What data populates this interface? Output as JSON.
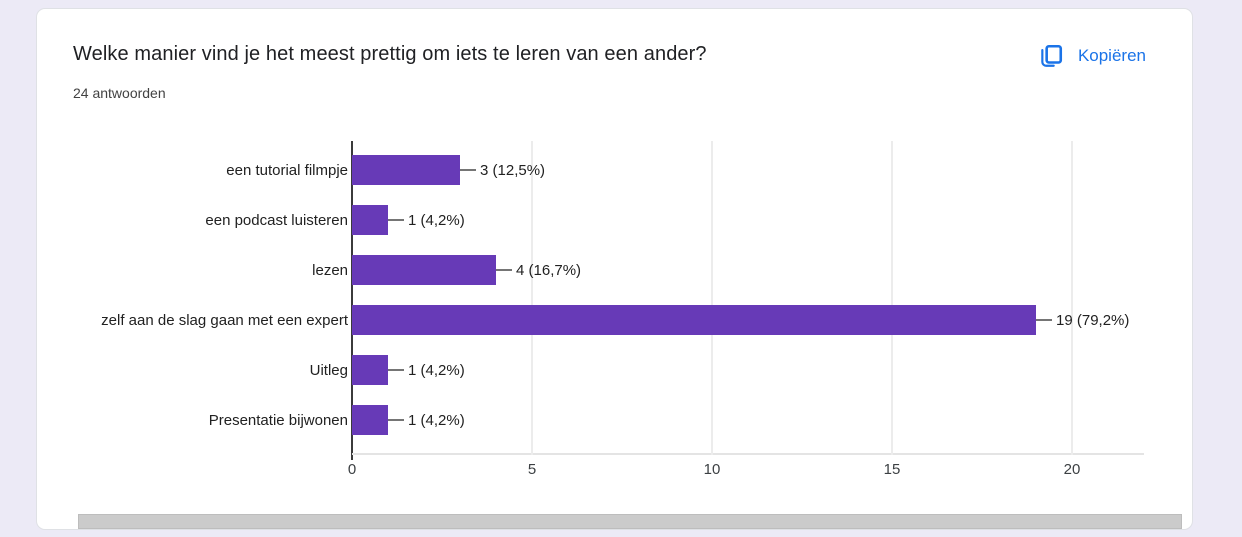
{
  "page": {
    "background_color": "#eceaf6"
  },
  "card": {
    "title": "Welke manier vind je het meest prettig om iets te leren van een ander?",
    "answers_count": "24 antwoorden",
    "copy_label": "Kopiëren",
    "copy_icon": "copy-icon",
    "accent_color": "#1a73e8"
  },
  "chart_data": {
    "type": "bar",
    "orientation": "horizontal",
    "categories": [
      "een tutorial filmpje",
      "een podcast luisteren",
      "lezen",
      "zelf aan de slag gaan met een expert",
      "Uitleg",
      "Presentatie bijwonen"
    ],
    "values": [
      3,
      1,
      4,
      19,
      1,
      1
    ],
    "value_labels": [
      "3 (12,5%)",
      "1 (4,2%)",
      "4 (16,7%)",
      "19 (79,2%)",
      "1 (4,2%)",
      "1 (4,2%)"
    ],
    "x_ticks": [
      0,
      5,
      10,
      15,
      20
    ],
    "xlim": [
      0,
      20
    ],
    "bar_color": "#673ab7",
    "grid": true,
    "legend": "none",
    "title": "Welke manier vind je het meest prettig om iets te leren van een ander?",
    "xlabel": "",
    "ylabel": ""
  }
}
